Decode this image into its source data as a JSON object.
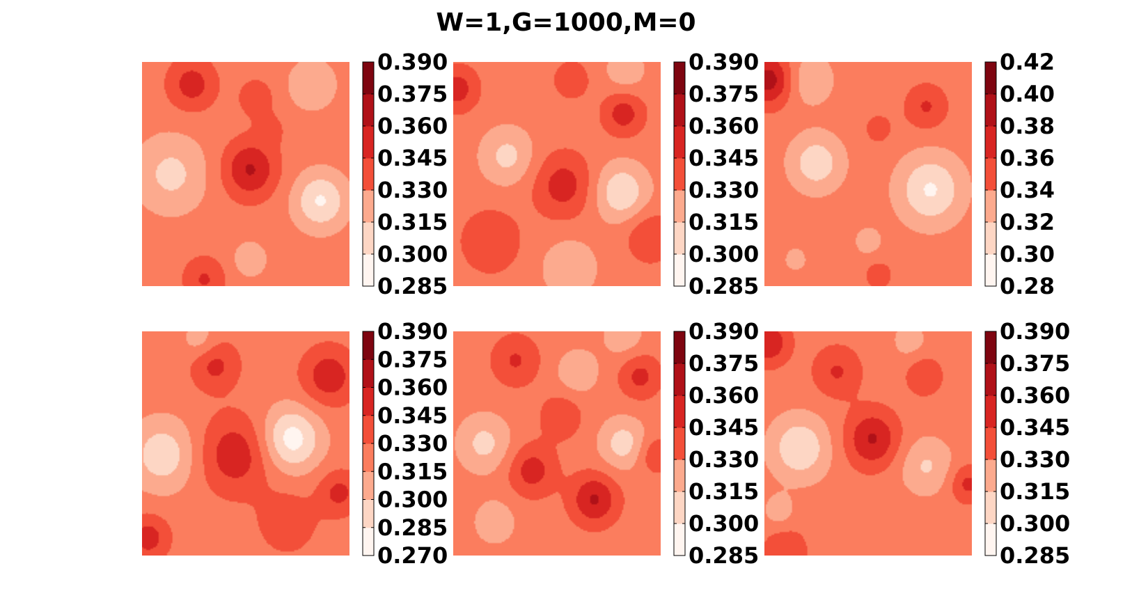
{
  "chart_data": {
    "type": "heatmap",
    "title": "W=1,G=1000,M=0",
    "colormap": "Reds",
    "colors": [
      "#fff5f0",
      "#fdd6c4",
      "#fcaa8e",
      "#fb7d5e",
      "#f34f39",
      "#d82522",
      "#b01118",
      "#7e0510"
    ],
    "panels": [
      {
        "id": "panel-1",
        "colorbar_ticks": [
          "0.390",
          "0.375",
          "0.360",
          "0.345",
          "0.330",
          "0.315",
          "0.300",
          "0.285"
        ],
        "range": [
          0.285,
          0.39
        ],
        "peaks": [
          {
            "x": 0.52,
            "y": 0.48,
            "h": 2.6,
            "s": 0.09
          },
          {
            "x": 0.24,
            "y": 0.1,
            "h": 2.0,
            "s": 0.08
          },
          {
            "x": 0.55,
            "y": 0.16,
            "h": 1.2,
            "s": 0.06
          },
          {
            "x": 0.3,
            "y": 0.97,
            "h": 1.6,
            "s": 0.07
          },
          {
            "x": 0.86,
            "y": 0.62,
            "h": -2.6,
            "s": 0.09
          },
          {
            "x": 0.14,
            "y": 0.5,
            "h": -1.8,
            "s": 0.12
          },
          {
            "x": 0.82,
            "y": 0.1,
            "h": -1.5,
            "s": 0.08
          },
          {
            "x": 0.52,
            "y": 0.88,
            "h": -1.2,
            "s": 0.06
          },
          {
            "x": 0.62,
            "y": 0.3,
            "h": 0.8,
            "s": 0.05
          }
        ]
      },
      {
        "id": "panel-2",
        "colorbar_ticks": [
          "0.390",
          "0.375",
          "0.360",
          "0.345",
          "0.330",
          "0.315",
          "0.300",
          "0.285"
        ],
        "range": [
          0.285,
          0.39
        ],
        "peaks": [
          {
            "x": 0.53,
            "y": 0.55,
            "h": 2.0,
            "s": 0.1
          },
          {
            "x": 0.82,
            "y": 0.23,
            "h": 2.0,
            "s": 0.07
          },
          {
            "x": 0.02,
            "y": 0.12,
            "h": 2.0,
            "s": 0.07
          },
          {
            "x": 0.18,
            "y": 0.8,
            "h": 1.4,
            "s": 0.1
          },
          {
            "x": 0.95,
            "y": 0.78,
            "h": 1.5,
            "s": 0.08
          },
          {
            "x": 0.57,
            "y": 0.08,
            "h": 1.3,
            "s": 0.06
          },
          {
            "x": 0.81,
            "y": 0.58,
            "h": -2.4,
            "s": 0.09
          },
          {
            "x": 0.26,
            "y": 0.42,
            "h": -1.8,
            "s": 0.09
          },
          {
            "x": 0.56,
            "y": 0.92,
            "h": -1.5,
            "s": 0.09
          },
          {
            "x": 0.83,
            "y": 0.04,
            "h": -1.2,
            "s": 0.07
          }
        ]
      },
      {
        "id": "panel-3",
        "colorbar_ticks": [
          "0.42",
          "0.40",
          "0.38",
          "0.36",
          "0.34",
          "0.32",
          "0.30",
          "0.28"
        ],
        "range": [
          0.28,
          0.42
        ],
        "peaks": [
          {
            "x": 0.02,
            "y": 0.08,
            "h": 3.0,
            "s": 0.08
          },
          {
            "x": 0.78,
            "y": 0.2,
            "h": 1.6,
            "s": 0.07
          },
          {
            "x": 0.55,
            "y": 0.3,
            "h": 0.8,
            "s": 0.06
          },
          {
            "x": 0.55,
            "y": 0.95,
            "h": 1.0,
            "s": 0.05
          },
          {
            "x": 0.8,
            "y": 0.57,
            "h": -2.6,
            "s": 0.11
          },
          {
            "x": 0.25,
            "y": 0.45,
            "h": -2.2,
            "s": 0.09
          },
          {
            "x": 0.22,
            "y": 0.08,
            "h": -1.4,
            "s": 0.08
          },
          {
            "x": 0.5,
            "y": 0.8,
            "h": -1.0,
            "s": 0.05
          },
          {
            "x": 0.15,
            "y": 0.88,
            "h": -1.0,
            "s": 0.04
          }
        ]
      },
      {
        "id": "panel-4",
        "colorbar_ticks": [
          "0.390",
          "0.375",
          "0.360",
          "0.345",
          "0.330",
          "0.315",
          "0.300",
          "0.285",
          "0.270"
        ],
        "range": [
          0.27,
          0.39
        ],
        "peaks": [
          {
            "x": 0.45,
            "y": 0.55,
            "h": 2.2,
            "s": 0.12
          },
          {
            "x": 0.9,
            "y": 0.2,
            "h": 2.2,
            "s": 0.09
          },
          {
            "x": 0.35,
            "y": 0.15,
            "h": 1.8,
            "s": 0.08
          },
          {
            "x": 0.03,
            "y": 0.92,
            "h": 2.0,
            "s": 0.07
          },
          {
            "x": 0.95,
            "y": 0.72,
            "h": 1.8,
            "s": 0.07
          },
          {
            "x": 0.7,
            "y": 0.85,
            "h": 1.2,
            "s": 0.1
          },
          {
            "x": 0.72,
            "y": 0.48,
            "h": -3.0,
            "s": 0.1
          },
          {
            "x": 0.1,
            "y": 0.55,
            "h": -2.2,
            "s": 0.11
          },
          {
            "x": 0.28,
            "y": 0.04,
            "h": -1.2,
            "s": 0.06
          }
        ]
      },
      {
        "id": "panel-5",
        "colorbar_ticks": [
          "0.390",
          "0.375",
          "0.360",
          "0.345",
          "0.330",
          "0.315",
          "0.300",
          "0.285"
        ],
        "range": [
          0.285,
          0.39
        ],
        "peaks": [
          {
            "x": 0.68,
            "y": 0.75,
            "h": 2.6,
            "s": 0.08
          },
          {
            "x": 0.38,
            "y": 0.62,
            "h": 2.0,
            "s": 0.08
          },
          {
            "x": 0.9,
            "y": 0.2,
            "h": 1.8,
            "s": 0.07
          },
          {
            "x": 0.3,
            "y": 0.13,
            "h": 1.6,
            "s": 0.08
          },
          {
            "x": 0.52,
            "y": 0.38,
            "h": 1.4,
            "s": 0.07
          },
          {
            "x": 0.97,
            "y": 0.55,
            "h": 1.4,
            "s": 0.06
          },
          {
            "x": 0.82,
            "y": 0.5,
            "h": -2.0,
            "s": 0.08
          },
          {
            "x": 0.15,
            "y": 0.5,
            "h": -1.8,
            "s": 0.09
          },
          {
            "x": 0.6,
            "y": 0.18,
            "h": -1.4,
            "s": 0.07
          },
          {
            "x": 0.2,
            "y": 0.85,
            "h": -1.3,
            "s": 0.07
          },
          {
            "x": 0.82,
            "y": 0.02,
            "h": -1.2,
            "s": 0.07
          }
        ]
      },
      {
        "id": "panel-6",
        "colorbar_ticks": [
          "0.390",
          "0.375",
          "0.360",
          "0.345",
          "0.330",
          "0.315",
          "0.300",
          "0.285"
        ],
        "range": [
          0.285,
          0.39
        ],
        "peaks": [
          {
            "x": 0.52,
            "y": 0.48,
            "h": 2.6,
            "s": 0.09
          },
          {
            "x": 0.02,
            "y": 0.05,
            "h": 2.4,
            "s": 0.07
          },
          {
            "x": 0.35,
            "y": 0.18,
            "h": 1.6,
            "s": 0.08
          },
          {
            "x": 0.77,
            "y": 0.2,
            "h": 1.5,
            "s": 0.06
          },
          {
            "x": 0.98,
            "y": 0.68,
            "h": 1.8,
            "s": 0.06
          },
          {
            "x": 0.1,
            "y": 0.98,
            "h": 1.2,
            "s": 0.08
          },
          {
            "x": 0.17,
            "y": 0.52,
            "h": -2.4,
            "s": 0.1
          },
          {
            "x": 0.78,
            "y": 0.6,
            "h": -1.6,
            "s": 0.09
          },
          {
            "x": 0.7,
            "y": 0.04,
            "h": -1.0,
            "s": 0.06
          },
          {
            "x": 0.07,
            "y": 0.8,
            "h": -1.2,
            "s": 0.05
          }
        ]
      }
    ]
  }
}
